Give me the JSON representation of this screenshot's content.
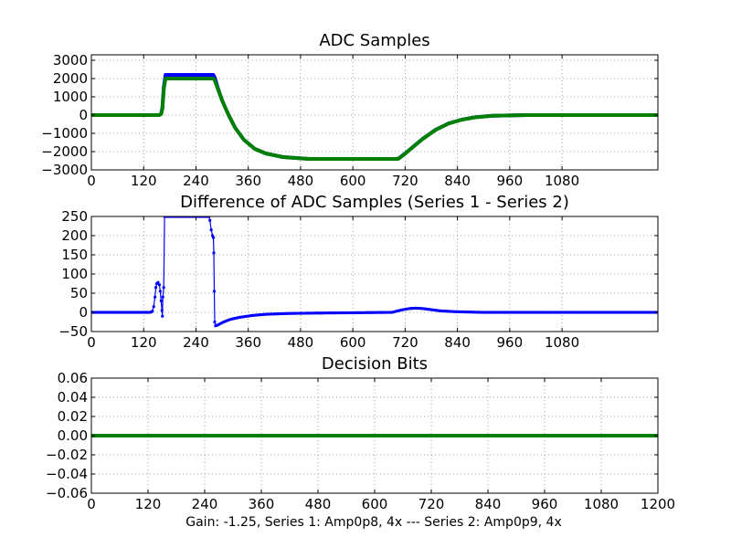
{
  "figure": {
    "caption": "Gain: -1.25, Series 1: Amp0p8, 4x --- Series 2: Amp0p9, 4x"
  },
  "chart_data": [
    {
      "type": "line",
      "title": "ADC Samples",
      "xlim": [
        0,
        1300
      ],
      "ylim": [
        -3000,
        3300
      ],
      "xticks": [
        0,
        120,
        240,
        360,
        480,
        600,
        720,
        840,
        960,
        1080
      ],
      "xtick_labels": [
        "0",
        "120",
        "240",
        "360",
        "480",
        "600",
        "720",
        "840",
        "960",
        "1080"
      ],
      "yticks": [
        -3000,
        -2000,
        -1000,
        0,
        1000,
        2000,
        3000
      ],
      "ytick_labels": [
        "−3000",
        "−2000",
        "−1000",
        "0",
        "1000",
        "2000",
        "3000"
      ],
      "grid": true,
      "series": [
        {
          "name": "Series 1",
          "color": "#0000ff",
          "points": [
            [
              0,
              0
            ],
            [
              155,
              0
            ],
            [
              160,
              60
            ],
            [
              163,
              400
            ],
            [
              166,
              1500
            ],
            [
              170,
              2200
            ],
            [
              280,
              2200
            ],
            [
              283,
              2050
            ],
            [
              290,
              1500
            ],
            [
              300,
              800
            ],
            [
              315,
              0
            ],
            [
              330,
              -700
            ],
            [
              350,
              -1350
            ],
            [
              375,
              -1850
            ],
            [
              400,
              -2100
            ],
            [
              440,
              -2300
            ],
            [
              500,
              -2400
            ],
            [
              700,
              -2400
            ],
            [
              705,
              -2380
            ],
            [
              720,
              -2100
            ],
            [
              740,
              -1700
            ],
            [
              760,
              -1300
            ],
            [
              790,
              -800
            ],
            [
              820,
              -450
            ],
            [
              850,
              -250
            ],
            [
              880,
              -120
            ],
            [
              920,
              -40
            ],
            [
              1000,
              0
            ],
            [
              1300,
              0
            ]
          ]
        },
        {
          "name": "Series 2",
          "color": "#008000",
          "points": [
            [
              0,
              0
            ],
            [
              155,
              0
            ],
            [
              160,
              50
            ],
            [
              163,
              350
            ],
            [
              166,
              1400
            ],
            [
              170,
              2000
            ],
            [
              280,
              2000
            ],
            [
              283,
              1900
            ],
            [
              290,
              1450
            ],
            [
              300,
              800
            ],
            [
              315,
              0
            ],
            [
              330,
              -700
            ],
            [
              350,
              -1350
            ],
            [
              375,
              -1850
            ],
            [
              400,
              -2100
            ],
            [
              440,
              -2300
            ],
            [
              500,
              -2400
            ],
            [
              700,
              -2400
            ],
            [
              705,
              -2390
            ],
            [
              720,
              -2110
            ],
            [
              740,
              -1710
            ],
            [
              760,
              -1310
            ],
            [
              790,
              -810
            ],
            [
              820,
              -460
            ],
            [
              850,
              -255
            ],
            [
              880,
              -125
            ],
            [
              920,
              -42
            ],
            [
              1000,
              0
            ],
            [
              1300,
              0
            ]
          ]
        }
      ]
    },
    {
      "type": "line",
      "title": "Difference of ADC Samples (Series 1 - Series 2)",
      "xlim": [
        0,
        1300
      ],
      "ylim": [
        -50,
        250
      ],
      "xticks": [
        0,
        120,
        240,
        360,
        480,
        600,
        720,
        840,
        960,
        1080
      ],
      "xtick_labels": [
        "0",
        "120",
        "240",
        "360",
        "480",
        "600",
        "720",
        "840",
        "960",
        "1080"
      ],
      "yticks": [
        -50,
        0,
        50,
        100,
        150,
        200,
        250
      ],
      "ytick_labels": [
        "−50",
        "0",
        "50",
        "100",
        "150",
        "200",
        "250"
      ],
      "grid": true,
      "series": [
        {
          "name": "Series 1 - Series 2",
          "color": "#0000ff",
          "points": [
            [
              0,
              0
            ],
            [
              135,
              0
            ],
            [
              140,
              3
            ],
            [
              143,
              15
            ],
            [
              146,
              40
            ],
            [
              148,
              65
            ],
            [
              150,
              75
            ],
            [
              153,
              78
            ],
            [
              156,
              72
            ],
            [
              158,
              55
            ],
            [
              160,
              30
            ],
            [
              162,
              5
            ],
            [
              163,
              -10
            ],
            [
              164,
              40
            ],
            [
              166,
              65
            ],
            [
              168,
              250
            ],
            [
              270,
              250
            ],
            [
              272,
              240
            ],
            [
              275,
              215
            ],
            [
              278,
              200
            ],
            [
              280,
              195
            ],
            [
              281,
              155
            ],
            [
              282,
              55
            ],
            [
              283,
              -25
            ],
            [
              285,
              -35
            ],
            [
              290,
              -33
            ],
            [
              300,
              -27
            ],
            [
              310,
              -22
            ],
            [
              320,
              -18
            ],
            [
              340,
              -13
            ],
            [
              370,
              -8
            ],
            [
              400,
              -5
            ],
            [
              450,
              -3
            ],
            [
              500,
              -2
            ],
            [
              600,
              -1
            ],
            [
              690,
              0
            ],
            [
              700,
              3
            ],
            [
              715,
              7
            ],
            [
              730,
              10
            ],
            [
              745,
              11
            ],
            [
              760,
              10
            ],
            [
              780,
              7
            ],
            [
              800,
              4
            ],
            [
              830,
              2
            ],
            [
              860,
              1
            ],
            [
              900,
              0
            ],
            [
              1300,
              0
            ]
          ]
        }
      ]
    },
    {
      "type": "line",
      "title": "Decision Bits",
      "xlim": [
        0,
        1200
      ],
      "ylim": [
        -0.06,
        0.06
      ],
      "xticks": [
        0,
        120,
        240,
        360,
        480,
        600,
        720,
        840,
        960,
        1080,
        1200
      ],
      "xtick_labels": [
        "0",
        "120",
        "240",
        "360",
        "480",
        "600",
        "720",
        "840",
        "960",
        "1080",
        "1200"
      ],
      "yticks": [
        -0.06,
        -0.04,
        -0.02,
        0.0,
        0.02,
        0.04,
        0.06
      ],
      "ytick_labels": [
        "−0.06",
        "−0.04",
        "−0.02",
        "0.00",
        "0.02",
        "0.04",
        "0.06"
      ],
      "grid": true,
      "series": [
        {
          "name": "Decision Bits",
          "color": "#008000",
          "points": [
            [
              0,
              0
            ],
            [
              1200,
              0
            ]
          ]
        }
      ]
    }
  ]
}
